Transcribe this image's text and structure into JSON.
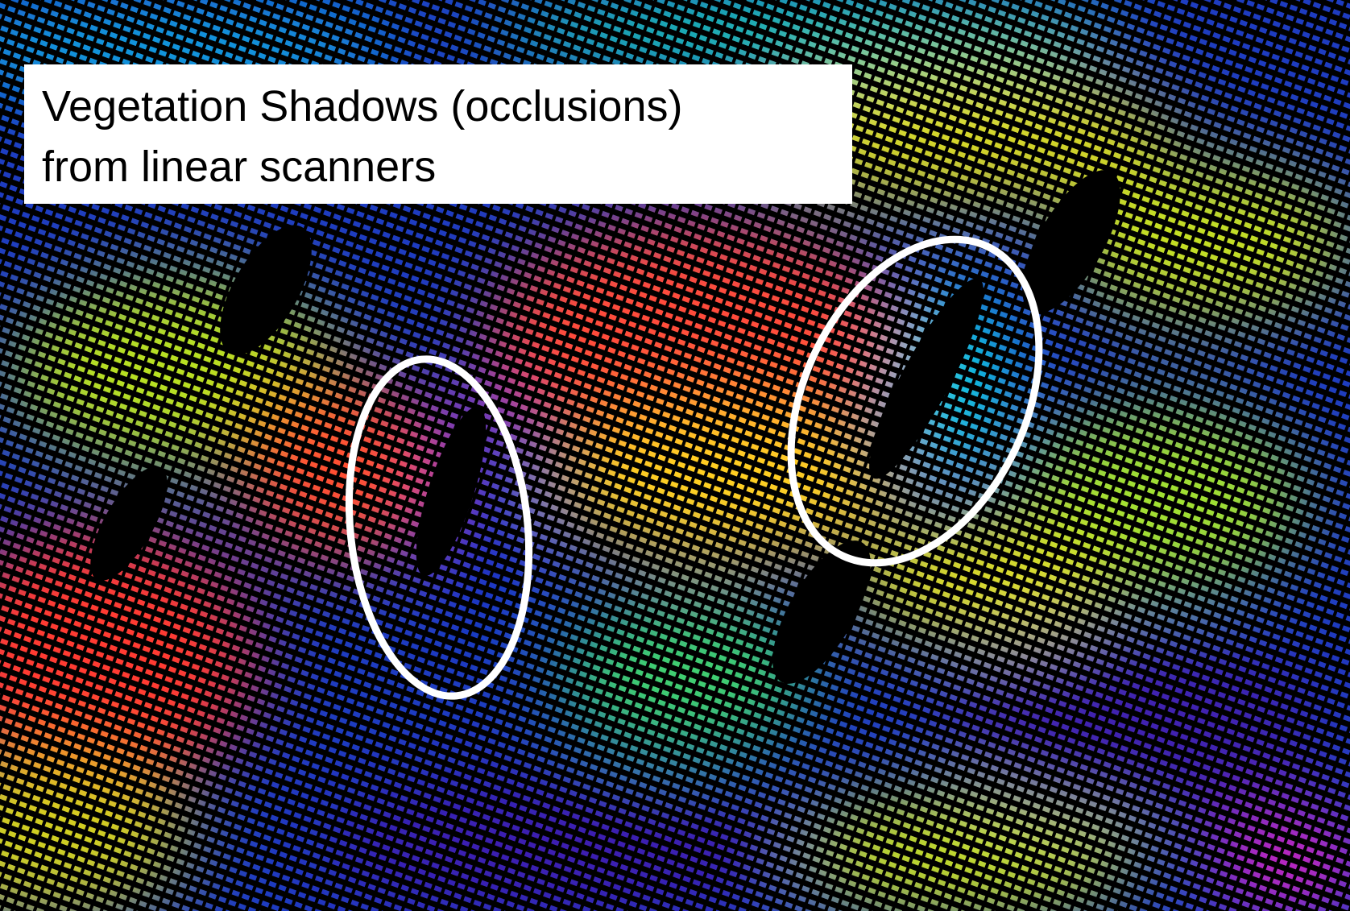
{
  "caption": {
    "lines": [
      "Vegetation Shadows (occlusions)",
      "from linear scanners"
    ]
  }
}
